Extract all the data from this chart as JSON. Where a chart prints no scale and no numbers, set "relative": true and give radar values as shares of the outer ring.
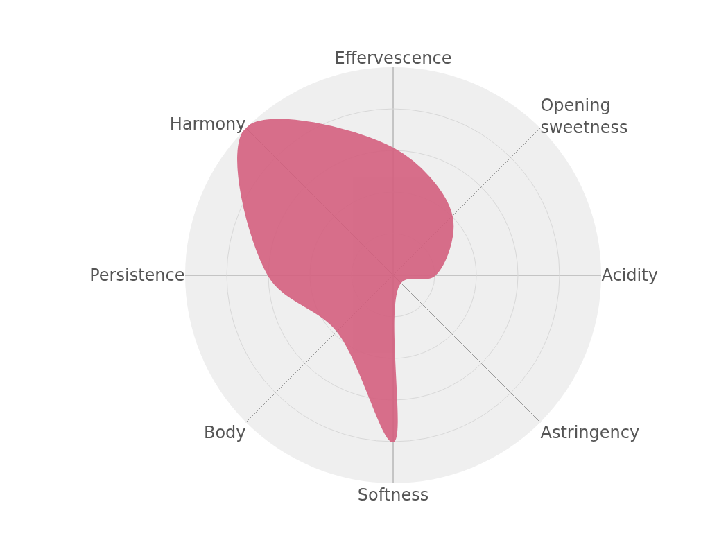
{
  "chart_data": {
    "type": "radar",
    "relative": true,
    "categories": [
      "Effervescence",
      "Opening\nsweetness",
      "Acidity",
      "Astringency",
      "Softness",
      "Body",
      "Persistence",
      "Harmony"
    ],
    "series": [
      {
        "color": "#d4607f",
        "values": [
          0.61,
          0.4,
          0.2,
          0.05,
          0.8,
          0.38,
          0.6,
          1.0
        ]
      }
    ],
    "grid": true
  }
}
